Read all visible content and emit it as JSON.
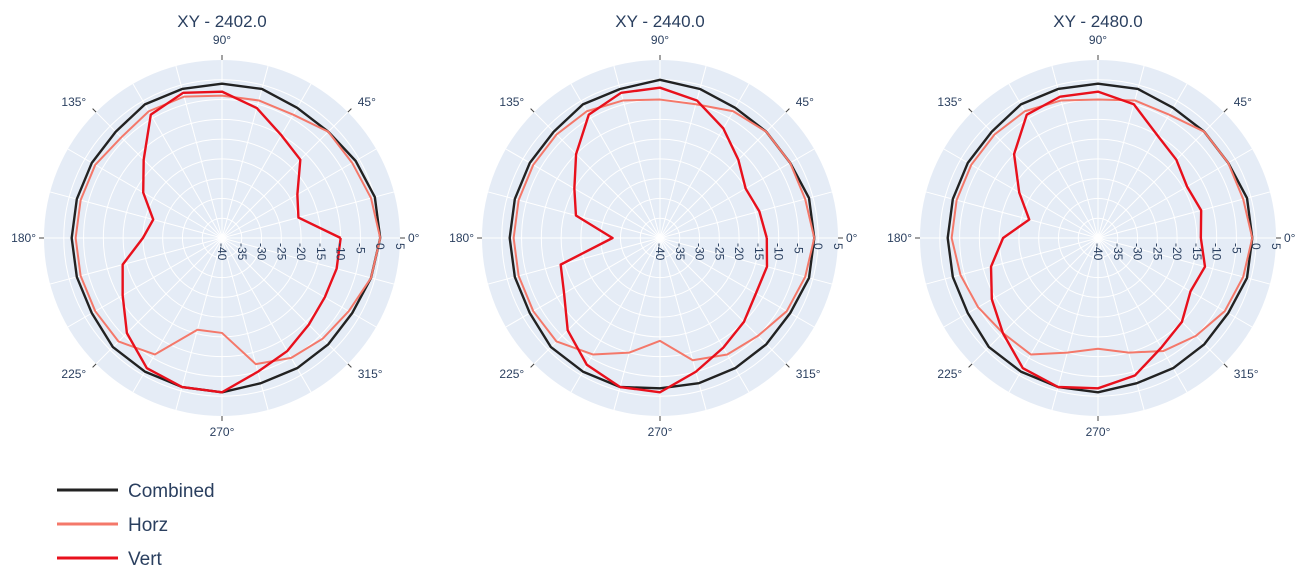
{
  "chart_data": [
    {
      "type": "polar",
      "title": "XY - 2402.0",
      "radial_range": [
        -40,
        5
      ],
      "radial_ticks": [
        "-40",
        "-35",
        "-30",
        "-25",
        "-20",
        "-15",
        "-10",
        "-5",
        "0",
        "5"
      ],
      "angular_ticks": [
        "0°",
        "45°",
        "90°",
        "135°",
        "180°",
        "225°",
        "270°",
        "315°"
      ],
      "grid": true,
      "theta": [
        0,
        15,
        30,
        45,
        60,
        75,
        90,
        105,
        120,
        135,
        150,
        165,
        180,
        195,
        210,
        225,
        240,
        255,
        270,
        285,
        300,
        315,
        330,
        345
      ],
      "series": [
        {
          "name": "Combined",
          "color": "#222222",
          "r": [
            0,
            0,
            -1,
            -2,
            -2,
            -1,
            -1,
            -1,
            -1,
            -2,
            -2,
            -2,
            -2,
            -2,
            -2,
            -1,
            -1,
            -1,
            -1,
            -2,
            -2,
            -2,
            -2,
            -1
          ]
        },
        {
          "name": "Horz",
          "color": "#f4786a",
          "r": [
            0,
            -1,
            -2,
            -2,
            -4,
            -4,
            -4,
            -3,
            -3,
            -4,
            -3,
            -3,
            -3,
            -3,
            -3,
            -3,
            -6,
            -16,
            -16,
            -7,
            -5,
            -4,
            -3,
            -1
          ]
        },
        {
          "name": "Vert",
          "color": "#e8101c",
          "r": [
            -10,
            -20,
            -18,
            -12,
            -10,
            -6,
            -3,
            -2,
            -4,
            -12,
            -17,
            -22,
            -20,
            -14,
            -11,
            -6,
            -2,
            -1,
            -1,
            -5,
            -7,
            -9,
            -10,
            -10
          ]
        }
      ]
    },
    {
      "type": "polar",
      "title": "XY - 2440.0",
      "radial_range": [
        -40,
        5
      ],
      "radial_ticks": [
        "-40",
        "-35",
        "-30",
        "-25",
        "-20",
        "-15",
        "-10",
        "-5",
        "0",
        "5"
      ],
      "angular_ticks": [
        "0°",
        "45°",
        "90°",
        "135°",
        "180°",
        "225°",
        "270°",
        "315°"
      ],
      "grid": true,
      "theta": [
        0,
        15,
        30,
        45,
        60,
        75,
        90,
        105,
        120,
        135,
        150,
        165,
        180,
        195,
        210,
        225,
        240,
        255,
        270,
        285,
        300,
        315,
        330,
        345
      ],
      "series": [
        {
          "name": "Combined",
          "color": "#222222",
          "r": [
            -1,
            -1,
            -2,
            -2,
            -2,
            -1,
            0,
            -1,
            -1,
            -2,
            -2,
            -2,
            -2,
            -2,
            -2,
            -1,
            -1,
            -1,
            -2,
            -2,
            -2,
            -2,
            -2,
            -1
          ]
        },
        {
          "name": "Horz",
          "color": "#f4786a",
          "r": [
            -1,
            -2,
            -2,
            -2,
            -3,
            -5,
            -5,
            -4,
            -3,
            -3,
            -3,
            -3,
            -3,
            -3,
            -3,
            -3,
            -6,
            -10,
            -14,
            -8,
            -6,
            -5,
            -3,
            -2
          ]
        },
        {
          "name": "Vert",
          "color": "#e8101c",
          "r": [
            -13,
            -14,
            -15,
            -12,
            -8,
            -4,
            -2,
            -2,
            -4,
            -10,
            -15,
            -18,
            -28,
            -14,
            -12,
            -7,
            -3,
            -1,
            -1,
            -5,
            -8,
            -10,
            -12,
            -12
          ]
        }
      ]
    },
    {
      "type": "polar",
      "title": "XY - 2480.0",
      "radial_range": [
        -40,
        5
      ],
      "radial_ticks": [
        "-40",
        "-35",
        "-30",
        "-25",
        "-20",
        "-15",
        "-10",
        "-5",
        "0",
        "5"
      ],
      "angular_ticks": [
        "0°",
        "45°",
        "90°",
        "135°",
        "180°",
        "225°",
        "270°",
        "315°"
      ],
      "grid": true,
      "theta": [
        0,
        15,
        30,
        45,
        60,
        75,
        90,
        105,
        120,
        135,
        150,
        165,
        180,
        195,
        210,
        225,
        240,
        255,
        270,
        285,
        300,
        315,
        330,
        345
      ],
      "series": [
        {
          "name": "Combined",
          "color": "#222222",
          "r": [
            -1,
            -1,
            -2,
            -2,
            -2,
            -1,
            -1,
            -1,
            -1,
            -2,
            -2,
            -2,
            -2,
            -2,
            -2,
            -1,
            -1,
            -1,
            -1,
            -2,
            -2,
            -2,
            -2,
            -1
          ]
        },
        {
          "name": "Horz",
          "color": "#f4786a",
          "r": [
            -1,
            -2,
            -2,
            -2,
            -4,
            -4,
            -5,
            -4,
            -3,
            -3,
            -3,
            -3,
            -3,
            -4,
            -5,
            -6,
            -6,
            -10,
            -12,
            -10,
            -7,
            -5,
            -3,
            -2
          ]
        },
        {
          "name": "Vert",
          "color": "#e8101c",
          "r": [
            -14,
            -13,
            -14,
            -12,
            -10,
            -5,
            -3,
            -3,
            -4,
            -10,
            -17,
            -22,
            -16,
            -12,
            -9,
            -6,
            -2,
            -1,
            -2,
            -4,
            -8,
            -10,
            -13,
            -12
          ]
        }
      ]
    }
  ],
  "legend": {
    "placement": "bottom-left",
    "items": [
      {
        "name": "Combined",
        "color": "#222222"
      },
      {
        "name": "Horz",
        "color": "#f4786a"
      },
      {
        "name": "Vert",
        "color": "#e8101c"
      }
    ]
  }
}
